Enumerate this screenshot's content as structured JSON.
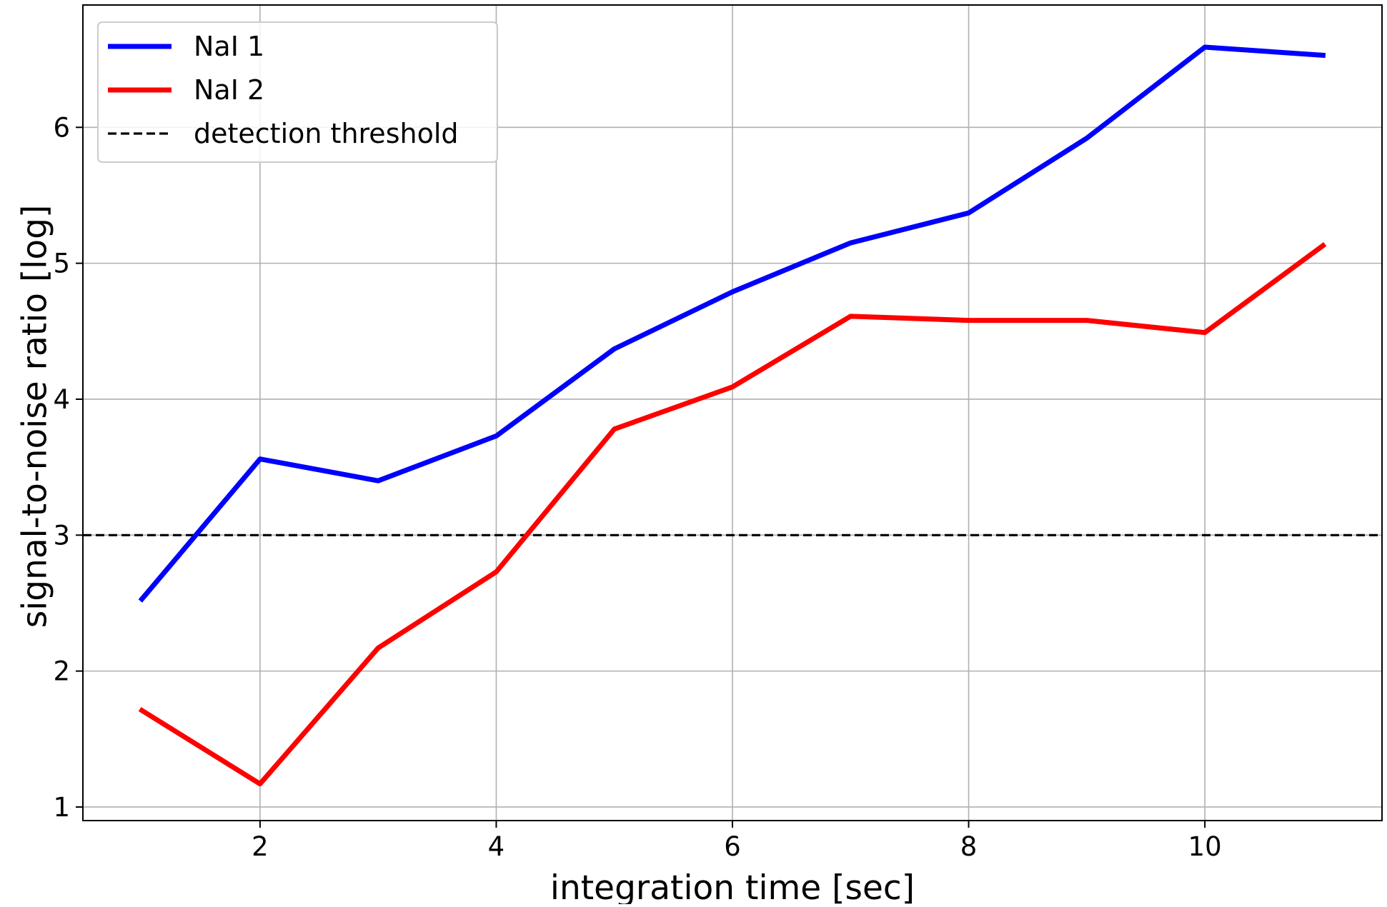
{
  "chart_data": {
    "type": "line",
    "title": "",
    "xlabel": "integration time [sec]",
    "ylabel": "signal-to-noise ratio [log]",
    "xlim": [
      0.5,
      11.5
    ],
    "ylim": [
      0.9,
      6.9
    ],
    "xticks": [
      2,
      4,
      6,
      8,
      10
    ],
    "yticks": [
      1,
      2,
      3,
      4,
      5,
      6
    ],
    "grid": true,
    "legend_position": "top-left",
    "x": [
      1,
      2,
      3,
      4,
      5,
      6,
      7,
      8,
      9,
      10,
      11
    ],
    "series": [
      {
        "name": "NaI 1",
        "color": "#0000ff",
        "style": "solid",
        "values": [
          2.53,
          3.56,
          3.4,
          3.73,
          4.37,
          4.79,
          5.15,
          5.37,
          5.92,
          6.59,
          6.53
        ]
      },
      {
        "name": "NaI 2",
        "color": "#ff0000",
        "style": "solid",
        "values": [
          1.71,
          1.17,
          2.17,
          2.73,
          3.78,
          4.09,
          4.61,
          4.58,
          4.58,
          4.49,
          5.13
        ]
      }
    ],
    "reference_lines": [
      {
        "name": "detection threshold",
        "orientation": "horizontal",
        "value": 3,
        "color": "#000000",
        "style": "dashed"
      }
    ]
  }
}
